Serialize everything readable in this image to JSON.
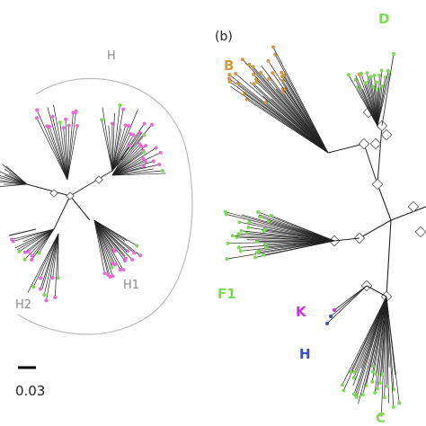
{
  "panel_b_label": "(b)",
  "scale_bar_label": "0.03",
  "left_tree": {
    "group_label": "H",
    "subgroup_labels": [
      "H1",
      "H2"
    ]
  },
  "right_tree": {
    "clades": [
      {
        "label": "B",
        "color": "#d19a45"
      },
      {
        "label": "D",
        "color": "#7ed957"
      },
      {
        "label": "F1",
        "color": "#7ed957"
      },
      {
        "label": "K",
        "color": "#c837d9"
      },
      {
        "label": "H",
        "color": "#3a4fc8"
      },
      {
        "label": "C",
        "color": "#7ed957"
      }
    ]
  },
  "colors": {
    "pink": "#e86ad7",
    "green": "#7ed957",
    "orange": "#d19a45",
    "purple": "#c837d9",
    "blue": "#3a4fc8",
    "branch": "#222222",
    "ellipse": "#bbbbbb"
  }
}
